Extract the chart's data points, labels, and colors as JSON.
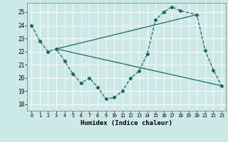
{
  "xlabel": "Humidex (Indice chaleur)",
  "xlim": [
    -0.5,
    23.5
  ],
  "ylim": [
    17.5,
    25.7
  ],
  "yticks": [
    18,
    19,
    20,
    21,
    22,
    23,
    24,
    25
  ],
  "xticks": [
    0,
    1,
    2,
    3,
    4,
    5,
    6,
    7,
    8,
    9,
    10,
    11,
    12,
    13,
    14,
    15,
    16,
    17,
    18,
    19,
    20,
    21,
    22,
    23
  ],
  "bg_color": "#cde8e8",
  "line_color": "#1a6b5e",
  "series": [
    {
      "x": [
        0,
        1,
        2,
        3,
        4,
        5,
        6,
        7,
        8,
        9,
        10,
        11,
        12,
        13,
        14,
        15,
        16,
        17,
        18,
        20,
        21,
        22,
        23
      ],
      "y": [
        24.0,
        22.8,
        22.0,
        22.2,
        21.3,
        20.3,
        19.6,
        20.0,
        19.3,
        18.4,
        18.5,
        19.0,
        20.0,
        20.5,
        21.8,
        24.4,
        25.0,
        25.4,
        25.1,
        24.8,
        22.1,
        20.6,
        19.4
      ]
    },
    {
      "x": [
        3,
        23
      ],
      "y": [
        22.2,
        19.4
      ]
    },
    {
      "x": [
        3,
        20
      ],
      "y": [
        22.2,
        24.8
      ]
    }
  ]
}
